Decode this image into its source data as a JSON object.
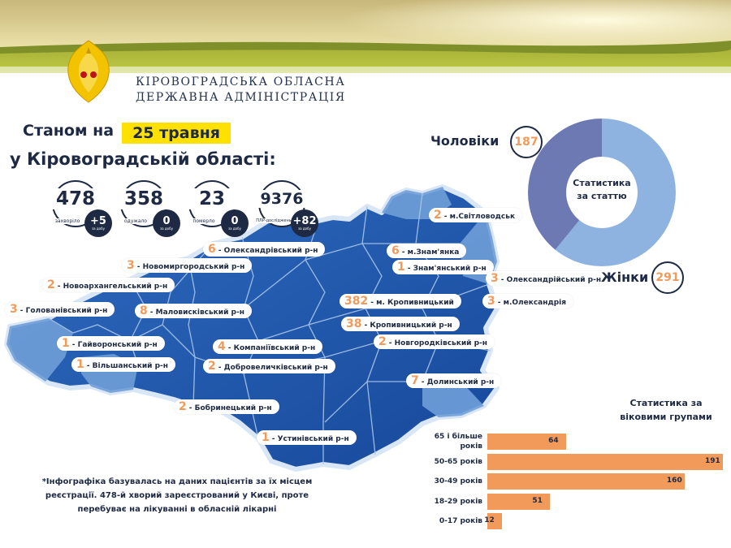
{
  "header": {
    "org_line1": "КІРОВОГРАДСЬКА ОБЛАСНА",
    "org_line2": "ДЕРЖАВНА АДМІНІСТРАЦІЯ",
    "status_prefix": "Станом на",
    "date": "25 травня",
    "region_line": "у Кіровоградській області:"
  },
  "stats": [
    {
      "value": "478",
      "label": "захворіло",
      "delta": "+5",
      "delta_caption": "за добу"
    },
    {
      "value": "358",
      "label": "одужало",
      "delta": "0",
      "delta_caption": "за добу"
    },
    {
      "value": "23",
      "label": "померло",
      "delta": "0",
      "delta_caption": "за добу"
    },
    {
      "value": "9376",
      "label": "ПЛР-досліджень",
      "delta": "+82",
      "delta_caption": "за добу"
    }
  ],
  "districts": [
    {
      "count": "2",
      "name": "- м.Світловодськ"
    },
    {
      "count": "6",
      "name": "- Олександрівський р-н"
    },
    {
      "count": "6",
      "name": "- м.Знам'янка"
    },
    {
      "count": "1",
      "name": "- Знам'янський р-н"
    },
    {
      "count": "3",
      "name": "- Новомиргородський р-н"
    },
    {
      "count": "3",
      "name": "- Олександрійський р-н"
    },
    {
      "count": "2",
      "name": "- Новоархангельський р-н"
    },
    {
      "count": "382",
      "name": "- м. Кропивницький"
    },
    {
      "count": "3",
      "name": "- м.Олександрія"
    },
    {
      "count": "3",
      "name": "- Голованівський р-н"
    },
    {
      "count": "8",
      "name": "- Маловисківський р-н"
    },
    {
      "count": "38",
      "name": "- Кропивницький р-н"
    },
    {
      "count": "1",
      "name": "- Гайворонський р-н"
    },
    {
      "count": "4",
      "name": "- Компаніївський р-н"
    },
    {
      "count": "2",
      "name": "- Новгородківський р-н"
    },
    {
      "count": "1",
      "name": "- Вільшанський р-н"
    },
    {
      "count": "2",
      "name": "- Добровеличківський р-н"
    },
    {
      "count": "7",
      "name": "- Долинський р-н"
    },
    {
      "count": "2",
      "name": "- Бобринецький р-н"
    },
    {
      "count": "1",
      "name": "- Устинівський р-н"
    }
  ],
  "gender": {
    "title": "Статистика за статтю",
    "men_label": "Чоловіки",
    "men_value": 187,
    "women_label": "Жінки",
    "women_value": 291,
    "colors": {
      "women": "#8fb3e0",
      "men": "#6c79b3"
    }
  },
  "age_groups": {
    "title": "Статистика за віковими групами",
    "groups": [
      {
        "label": "65 і більше років",
        "value": 64
      },
      {
        "label": "50-65 років",
        "value": 191
      },
      {
        "label": "30-49 років",
        "value": 160
      },
      {
        "label": "18-29 років",
        "value": 51
      },
      {
        "label": "0-17 років",
        "value": 12
      }
    ],
    "bar_color": "#f29a5a"
  },
  "footnote": "*Інфографіка базувалась на даних пацієнтів за їх місцем реєстрації. 478-й хворий зареєстрований у Києві, проте перебуває на лікуванні в обласній лікарні",
  "colors": {
    "accent": "#f29a5a",
    "highlight": "#ffe100",
    "navy": "#1e2a44",
    "map_dark": "#1f5cad",
    "map_light": "#6f9fd8"
  }
}
